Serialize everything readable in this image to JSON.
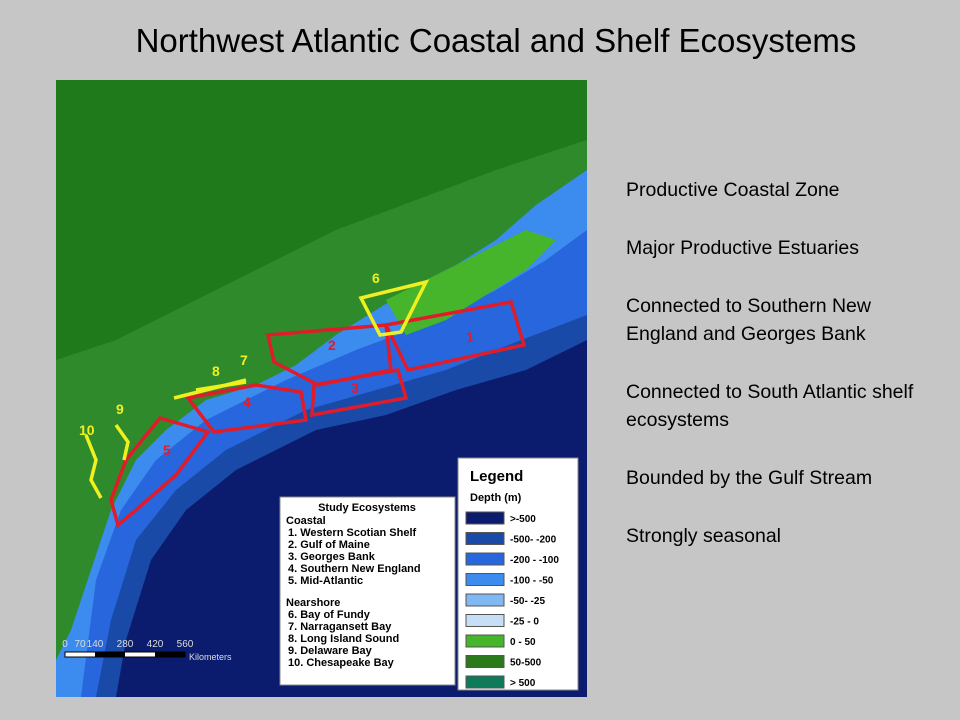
{
  "title": "Northwest Atlantic Coastal and Shelf Ecosystems",
  "points": [
    "Productive Coastal Zone",
    "Major Productive Estuaries",
    "Connected to Southern New England and Georges Bank",
    "Connected to South Atlantic shelf ecosystems",
    "Bounded by the Gulf Stream",
    "Strongly seasonal"
  ],
  "map": {
    "region_labels": [
      "1",
      "2",
      "3",
      "4",
      "5",
      "6",
      "7",
      "8",
      "9",
      "10"
    ],
    "legend": {
      "title": "Legend",
      "subtitle": "Depth (m)",
      "items": [
        {
          "label": ">-500",
          "color": "#0b1c6e"
        },
        {
          "label": "-500- -200",
          "color": "#1a4aa8"
        },
        {
          "label": "-200 - -100",
          "color": "#2766dc"
        },
        {
          "label": "-100 - -50",
          "color": "#3c8cf0"
        },
        {
          "label": "-50- -25",
          "color": "#80b8f4"
        },
        {
          "label": "-25 - 0",
          "color": "#c6def6"
        },
        {
          "label": "0 - 50",
          "color": "#46b52c"
        },
        {
          "label": "50-500",
          "color": "#2a7a1c"
        },
        {
          "label": "> 500",
          "color": "#0f7a5a"
        }
      ]
    },
    "study": {
      "title": "Study Ecosystems",
      "groups": [
        {
          "name": "Coastal",
          "items": [
            "1.  Western Scotian Shelf",
            "2.  Gulf of Maine",
            "3.  Georges Bank",
            "4.  Southern New England",
            "5.  Mid-Atlantic"
          ]
        },
        {
          "name": "Nearshore",
          "items": [
            "6.  Bay of Fundy",
            "7.  Narragansett Bay",
            "8.  Long Island Sound",
            "9.  Delaware Bay",
            "10.  Chesapeake Bay"
          ]
        }
      ]
    },
    "scale": {
      "labels": [
        "0",
        "70",
        "140",
        "280",
        "420",
        "560"
      ],
      "unit": "Kilometers"
    }
  }
}
